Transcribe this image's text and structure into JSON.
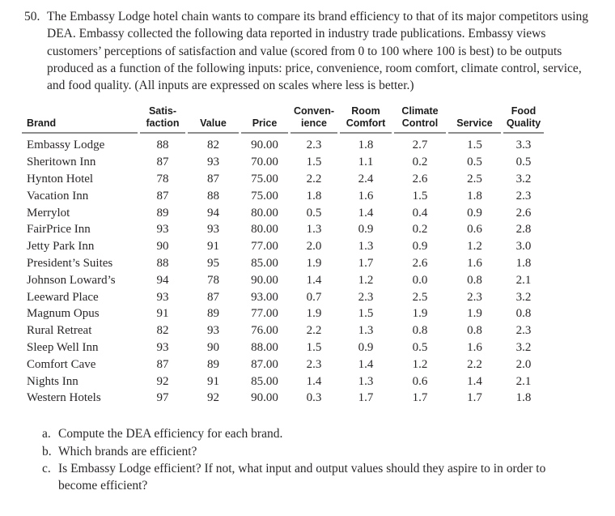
{
  "problem": {
    "number": "50.",
    "statement": "The Embassy Lodge hotel chain wants to compare its brand efficiency to that of its major competitors using DEA. Embassy collected the following data reported in industry trade publications. Embassy views customers’ perceptions of satisfaction and value (scored from 0 to 100 where 100 is best) to be outputs produced as a function of the following inputs: price, convenience, room comfort, climate control, service, and food quality. (All inputs are expressed on scales where less is better.)"
  },
  "table": {
    "headers": [
      "Brand",
      "Satis-\nfaction",
      "Value",
      "Price",
      "Conven-\nience",
      "Room\nComfort",
      "Climate\nControl",
      "Service",
      "Food\nQuality"
    ],
    "rows": [
      [
        "Embassy Lodge",
        "88",
        "82",
        "90.00",
        "2.3",
        "1.8",
        "2.7",
        "1.5",
        "3.3"
      ],
      [
        "Sheritown Inn",
        "87",
        "93",
        "70.00",
        "1.5",
        "1.1",
        "0.2",
        "0.5",
        "0.5"
      ],
      [
        "Hynton Hotel",
        "78",
        "87",
        "75.00",
        "2.2",
        "2.4",
        "2.6",
        "2.5",
        "3.2"
      ],
      [
        "Vacation Inn",
        "87",
        "88",
        "75.00",
        "1.8",
        "1.6",
        "1.5",
        "1.8",
        "2.3"
      ],
      [
        "Merrylot",
        "89",
        "94",
        "80.00",
        "0.5",
        "1.4",
        "0.4",
        "0.9",
        "2.6"
      ],
      [
        "FairPrice Inn",
        "93",
        "93",
        "80.00",
        "1.3",
        "0.9",
        "0.2",
        "0.6",
        "2.8"
      ],
      [
        "Jetty Park Inn",
        "90",
        "91",
        "77.00",
        "2.0",
        "1.3",
        "0.9",
        "1.2",
        "3.0"
      ],
      [
        "President’s Suites",
        "88",
        "95",
        "85.00",
        "1.9",
        "1.7",
        "2.6",
        "1.6",
        "1.8"
      ],
      [
        "Johnson Loward’s",
        "94",
        "78",
        "90.00",
        "1.4",
        "1.2",
        "0.0",
        "0.8",
        "2.1"
      ],
      [
        "Leeward Place",
        "93",
        "87",
        "93.00",
        "0.7",
        "2.3",
        "2.5",
        "2.3",
        "3.2"
      ],
      [
        "Magnum Opus",
        "91",
        "89",
        "77.00",
        "1.9",
        "1.5",
        "1.9",
        "1.9",
        "0.8"
      ],
      [
        "Rural Retreat",
        "82",
        "93",
        "76.00",
        "2.2",
        "1.3",
        "0.8",
        "0.8",
        "2.3"
      ],
      [
        "Sleep Well Inn",
        "93",
        "90",
        "88.00",
        "1.5",
        "0.9",
        "0.5",
        "1.6",
        "3.2"
      ],
      [
        "Comfort Cave",
        "87",
        "89",
        "87.00",
        "2.3",
        "1.4",
        "1.2",
        "2.2",
        "2.0"
      ],
      [
        "Nights Inn",
        "92",
        "91",
        "85.00",
        "1.4",
        "1.3",
        "0.6",
        "1.4",
        "2.1"
      ],
      [
        "Western Hotels",
        "97",
        "92",
        "90.00",
        "0.3",
        "1.7",
        "1.7",
        "1.7",
        "1.8"
      ]
    ]
  },
  "questions": [
    {
      "label": "a.",
      "text": "Compute the DEA efficiency for each brand."
    },
    {
      "label": "b.",
      "text": "Which brands are efficient?"
    },
    {
      "label": "c.",
      "text": "Is Embassy Lodge efficient? If not, what input and output values should they aspire to in order to become efficient?"
    }
  ]
}
